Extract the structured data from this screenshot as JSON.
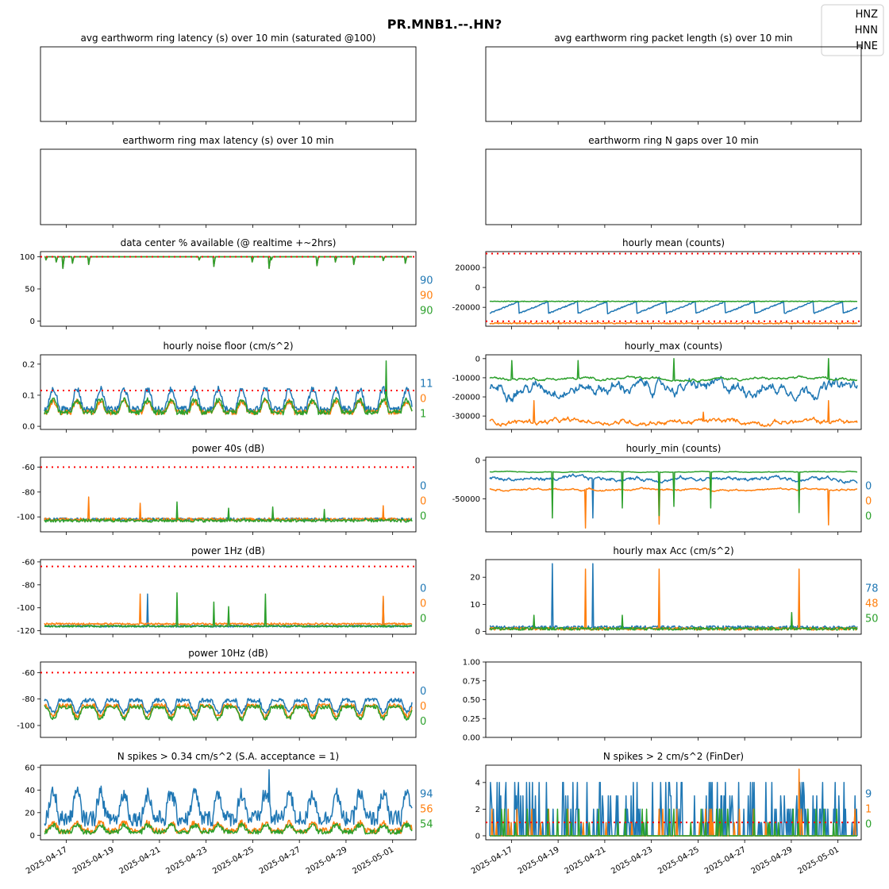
{
  "figure": {
    "title": "PR.MNB1.--.HN?"
  },
  "legend": {
    "placement": "top-right",
    "entries": [
      {
        "name": "HNZ",
        "color": "#1f77b4"
      },
      {
        "name": "HNN",
        "color": "#ff7f0e"
      },
      {
        "name": "HNE",
        "color": "#2ca02c"
      }
    ]
  },
  "chart_data": [
    {
      "id": "p_avglat",
      "type": "line",
      "title": "avg earthworm ring latency (s)   over 10 min (saturated @100)",
      "empty": true,
      "series": [],
      "last_values": []
    },
    {
      "id": "p_avgpkt",
      "type": "line",
      "title": "avg earthworm ring packet length (s)   over 10 min",
      "empty": true,
      "series": [],
      "last_values": []
    },
    {
      "id": "p_maxlat",
      "type": "line",
      "title": "earthworm ring max latency (s)   over 10 min",
      "empty": true,
      "series": [],
      "last_values": []
    },
    {
      "id": "p_ngaps",
      "type": "line",
      "title": "earthworm ring N gaps   over 10 min",
      "empty": true,
      "series": [],
      "last_values": []
    },
    {
      "id": "p_avail",
      "type": "line",
      "title": "data center % available (@ realtime +~2hrs)",
      "ylim": [
        -8,
        108
      ],
      "yticks": [
        0,
        50,
        100
      ],
      "threshold": [
        100
      ],
      "series": [
        {
          "kind": "avail",
          "base": 100,
          "dips": [
            [
              2,
              95
            ],
            [
              16,
              92
            ],
            [
              25,
              82
            ],
            [
              38,
              90
            ],
            [
              60,
              88
            ],
            [
              210,
              95
            ],
            [
              230,
              85
            ],
            [
              282,
              92
            ],
            [
              305,
              82
            ],
            [
              308,
              95
            ],
            [
              370,
              86
            ],
            [
              395,
              92
            ],
            [
              420,
              88
            ],
            [
              460,
              94
            ],
            [
              490,
              90
            ]
          ]
        },
        {
          "kind": "avail",
          "base": 100,
          "dips": [
            [
              2,
              95
            ],
            [
              16,
              92
            ],
            [
              25,
              82
            ],
            [
              38,
              90
            ],
            [
              60,
              88
            ],
            [
              210,
              95
            ],
            [
              230,
              85
            ],
            [
              282,
              92
            ],
            [
              305,
              82
            ],
            [
              308,
              95
            ],
            [
              370,
              86
            ],
            [
              395,
              92
            ],
            [
              420,
              88
            ],
            [
              460,
              94
            ],
            [
              490,
              90
            ]
          ]
        },
        {
          "kind": "avail",
          "base": 100,
          "dips": [
            [
              2,
              95
            ],
            [
              16,
              92
            ],
            [
              25,
              82
            ],
            [
              38,
              90
            ],
            [
              60,
              88
            ],
            [
              210,
              95
            ],
            [
              230,
              85
            ],
            [
              282,
              92
            ],
            [
              305,
              82
            ],
            [
              308,
              95
            ],
            [
              370,
              86
            ],
            [
              395,
              92
            ],
            [
              420,
              88
            ],
            [
              460,
              94
            ],
            [
              490,
              90
            ]
          ]
        }
      ],
      "last_values": [
        "90",
        "90",
        "90"
      ]
    },
    {
      "id": "p_mean",
      "type": "line",
      "title": "hourly mean (counts)",
      "ylim": [
        -39000,
        36000
      ],
      "yticks": [
        -20000,
        0,
        20000
      ],
      "threshold": [
        34000,
        -34000
      ],
      "series": [
        {
          "kind": "sawtooth",
          "low": -26000,
          "high": -14000,
          "period": 40
        },
        {
          "kind": "flat",
          "level": -36000,
          "noise": 600
        },
        {
          "kind": "flat",
          "level": -14000,
          "noise": 300
        }
      ],
      "last_values": [
        "",
        "",
        ""
      ]
    },
    {
      "id": "p_noise",
      "type": "line",
      "title": "hourly noise floor (cm/s^2)",
      "ylim": [
        -0.01,
        0.23
      ],
      "yticks": [
        0.0,
        0.1,
        0.2
      ],
      "threshold": [
        0.115
      ],
      "series": [
        {
          "kind": "daily",
          "base": 0.055,
          "amp": 0.065,
          "noise": 0.01
        },
        {
          "kind": "daily",
          "base": 0.045,
          "amp": 0.035,
          "noise": 0.008
        },
        {
          "kind": "daily",
          "base": 0.045,
          "amp": 0.04,
          "noise": 0.008,
          "spikes": [
            [
              464,
              0.21
            ]
          ]
        }
      ],
      "last_values": [
        "11",
        "0",
        "1"
      ]
    },
    {
      "id": "p_max",
      "type": "line",
      "title": "hourly_max (counts)",
      "ylim": [
        -37000,
        2000
      ],
      "yticks": [
        -30000,
        -20000,
        -10000,
        0
      ],
      "threshold": [],
      "series": [
        {
          "kind": "walk",
          "level": -15000,
          "noise": 3500
        },
        {
          "kind": "walk",
          "level": -33000,
          "noise": 1500,
          "spikes": [
            [
              60,
              -22000
            ],
            [
              290,
              -28000
            ],
            [
              460,
              -22000
            ]
          ]
        },
        {
          "kind": "walk",
          "level": -10500,
          "noise": 800,
          "spikes": [
            [
              30,
              -1000
            ],
            [
              120,
              -1000
            ],
            [
              250,
              0
            ],
            [
              460,
              0
            ]
          ]
        }
      ],
      "last_values": [
        "",
        "",
        ""
      ]
    },
    {
      "id": "p_p40",
      "type": "line",
      "title": "power 40s (dB)",
      "ylim": [
        -112,
        -52
      ],
      "yticks": [
        -100,
        -80,
        -60
      ],
      "threshold": [
        -60
      ],
      "series": [
        {
          "kind": "flat",
          "level": -102,
          "noise": 1.2
        },
        {
          "kind": "flat",
          "level": -102,
          "noise": 1.2,
          "spikes": [
            [
              60,
              -84
            ],
            [
              130,
              -89
            ],
            [
              460,
              -91
            ]
          ]
        },
        {
          "kind": "flat",
          "level": -103,
          "noise": 1.2,
          "spikes": [
            [
              180,
              -88
            ],
            [
              250,
              -93
            ],
            [
              310,
              -92
            ],
            [
              380,
              -94
            ]
          ]
        }
      ],
      "last_values": [
        "0",
        "0",
        "0"
      ]
    },
    {
      "id": "p_min",
      "type": "line",
      "title": "hourly_min (counts)",
      "ylim": [
        -93000,
        4000
      ],
      "yticks": [
        -50000,
        0
      ],
      "threshold": [],
      "series": [
        {
          "kind": "walk",
          "level": -24000,
          "noise": 3000,
          "spikes": [
            [
              140,
              -75000
            ]
          ]
        },
        {
          "kind": "walk",
          "level": -38000,
          "noise": 1500,
          "spikes": [
            [
              130,
              -88000
            ],
            [
              230,
              -83000
            ],
            [
              460,
              -84000
            ]
          ]
        },
        {
          "kind": "walk",
          "level": -15000,
          "noise": 500,
          "spikes": [
            [
              85,
              -75000
            ],
            [
              180,
              -62000
            ],
            [
              230,
              -72000
            ],
            [
              250,
              -60000
            ],
            [
              300,
              -62000
            ],
            [
              420,
              -68000
            ]
          ]
        }
      ],
      "last_values": [
        "0",
        "0",
        "0"
      ]
    },
    {
      "id": "p_p1",
      "type": "line",
      "title": "power 1Hz (dB)",
      "ylim": [
        -123,
        -58
      ],
      "yticks": [
        -120,
        -100,
        -80,
        -60
      ],
      "threshold": [
        -64
      ],
      "series": [
        {
          "kind": "flat",
          "level": -116,
          "noise": 0.8,
          "spikes": [
            [
              140,
              -88
            ],
            [
              460,
              -92
            ]
          ]
        },
        {
          "kind": "flat",
          "level": -114,
          "noise": 0.8,
          "spikes": [
            [
              130,
              -88
            ],
            [
              460,
              -90
            ]
          ]
        },
        {
          "kind": "flat",
          "level": -116,
          "noise": 0.8,
          "spikes": [
            [
              180,
              -87
            ],
            [
              230,
              -95
            ],
            [
              250,
              -99
            ],
            [
              300,
              -88
            ]
          ]
        }
      ],
      "last_values": [
        "0",
        "0",
        "0"
      ]
    },
    {
      "id": "p_acc",
      "type": "line",
      "title": "hourly max Acc (cm/s^2)",
      "ylim": [
        -1,
        26.5
      ],
      "yticks": [
        0,
        10,
        20
      ],
      "threshold": [],
      "series": [
        {
          "kind": "flat",
          "level": 1.5,
          "noise": 0.6,
          "spikes": [
            [
              85,
              25
            ],
            [
              140,
              25
            ]
          ]
        },
        {
          "kind": "flat",
          "level": 1.0,
          "noise": 0.5,
          "spikes": [
            [
              130,
              23
            ],
            [
              230,
              23
            ],
            [
              420,
              23
            ]
          ]
        },
        {
          "kind": "flat",
          "level": 1.0,
          "noise": 0.5,
          "spikes": [
            [
              60,
              6
            ],
            [
              180,
              6
            ],
            [
              410,
              7
            ]
          ]
        }
      ],
      "last_values": [
        "78",
        "48",
        "50"
      ]
    },
    {
      "id": "p_p10",
      "type": "line",
      "title": "power 10Hz (dB)",
      "ylim": [
        -109,
        -52
      ],
      "yticks": [
        -100,
        -80,
        -60
      ],
      "threshold": [
        -60
      ],
      "series": [
        {
          "kind": "daily",
          "base": -81,
          "amp": -9,
          "noise": 1.5
        },
        {
          "kind": "daily",
          "base": -85,
          "amp": -8,
          "noise": 1.5
        },
        {
          "kind": "daily",
          "base": -86,
          "amp": -9,
          "noise": 1.5
        }
      ],
      "last_values": [
        "0",
        "0",
        "0"
      ]
    },
    {
      "id": "p_blank",
      "type": "line",
      "title": "",
      "empty": true,
      "ylim": [
        0,
        1
      ],
      "yticks": [
        0.0,
        0.25,
        0.5,
        0.75,
        1.0
      ],
      "series": [],
      "last_values": []
    },
    {
      "id": "p_spk034",
      "type": "line",
      "title": "N spikes > 0.34 cm/s^2 (S.A. acceptance = 1)",
      "ylim": [
        -4,
        62
      ],
      "yticks": [
        0,
        20,
        40,
        60
      ],
      "threshold": [],
      "series": [
        {
          "kind": "daily",
          "base": 15,
          "amp": 22,
          "noise": 7,
          "spikes": [
            [
              305,
              58
            ]
          ],
          "clip0": true
        },
        {
          "kind": "daily",
          "base": 4,
          "amp": 7,
          "noise": 2.5,
          "clip0": true
        },
        {
          "kind": "daily",
          "base": 3,
          "amp": 6,
          "noise": 2,
          "clip0": true
        }
      ],
      "last_values": [
        "94",
        "56",
        "54"
      ]
    },
    {
      "id": "p_spk2",
      "type": "line",
      "title": "N spikes > 2 cm/s^2 (FinDer)",
      "ylim": [
        -0.3,
        5.3
      ],
      "yticks": [
        0,
        2,
        4
      ],
      "threshold": [
        1
      ],
      "series": [
        {
          "kind": "counts",
          "p": 0.28,
          "max": 4,
          "spikes": [
            [
              300,
              4
            ]
          ]
        },
        {
          "kind": "counts",
          "p": 0.06,
          "max": 2,
          "spikes": [
            [
              420,
              5
            ]
          ]
        },
        {
          "kind": "counts",
          "p": 0.12,
          "max": 2
        }
      ],
      "last_values": [
        "9",
        "1",
        "0"
      ]
    }
  ],
  "x_axis": {
    "start": "2025-04-16",
    "end": "2025-05-01",
    "ticks": [
      "2025-04-17",
      "2025-04-19",
      "2025-04-21",
      "2025-04-23",
      "2025-04-25",
      "2025-04-27",
      "2025-04-29",
      "2025-05-01"
    ]
  }
}
